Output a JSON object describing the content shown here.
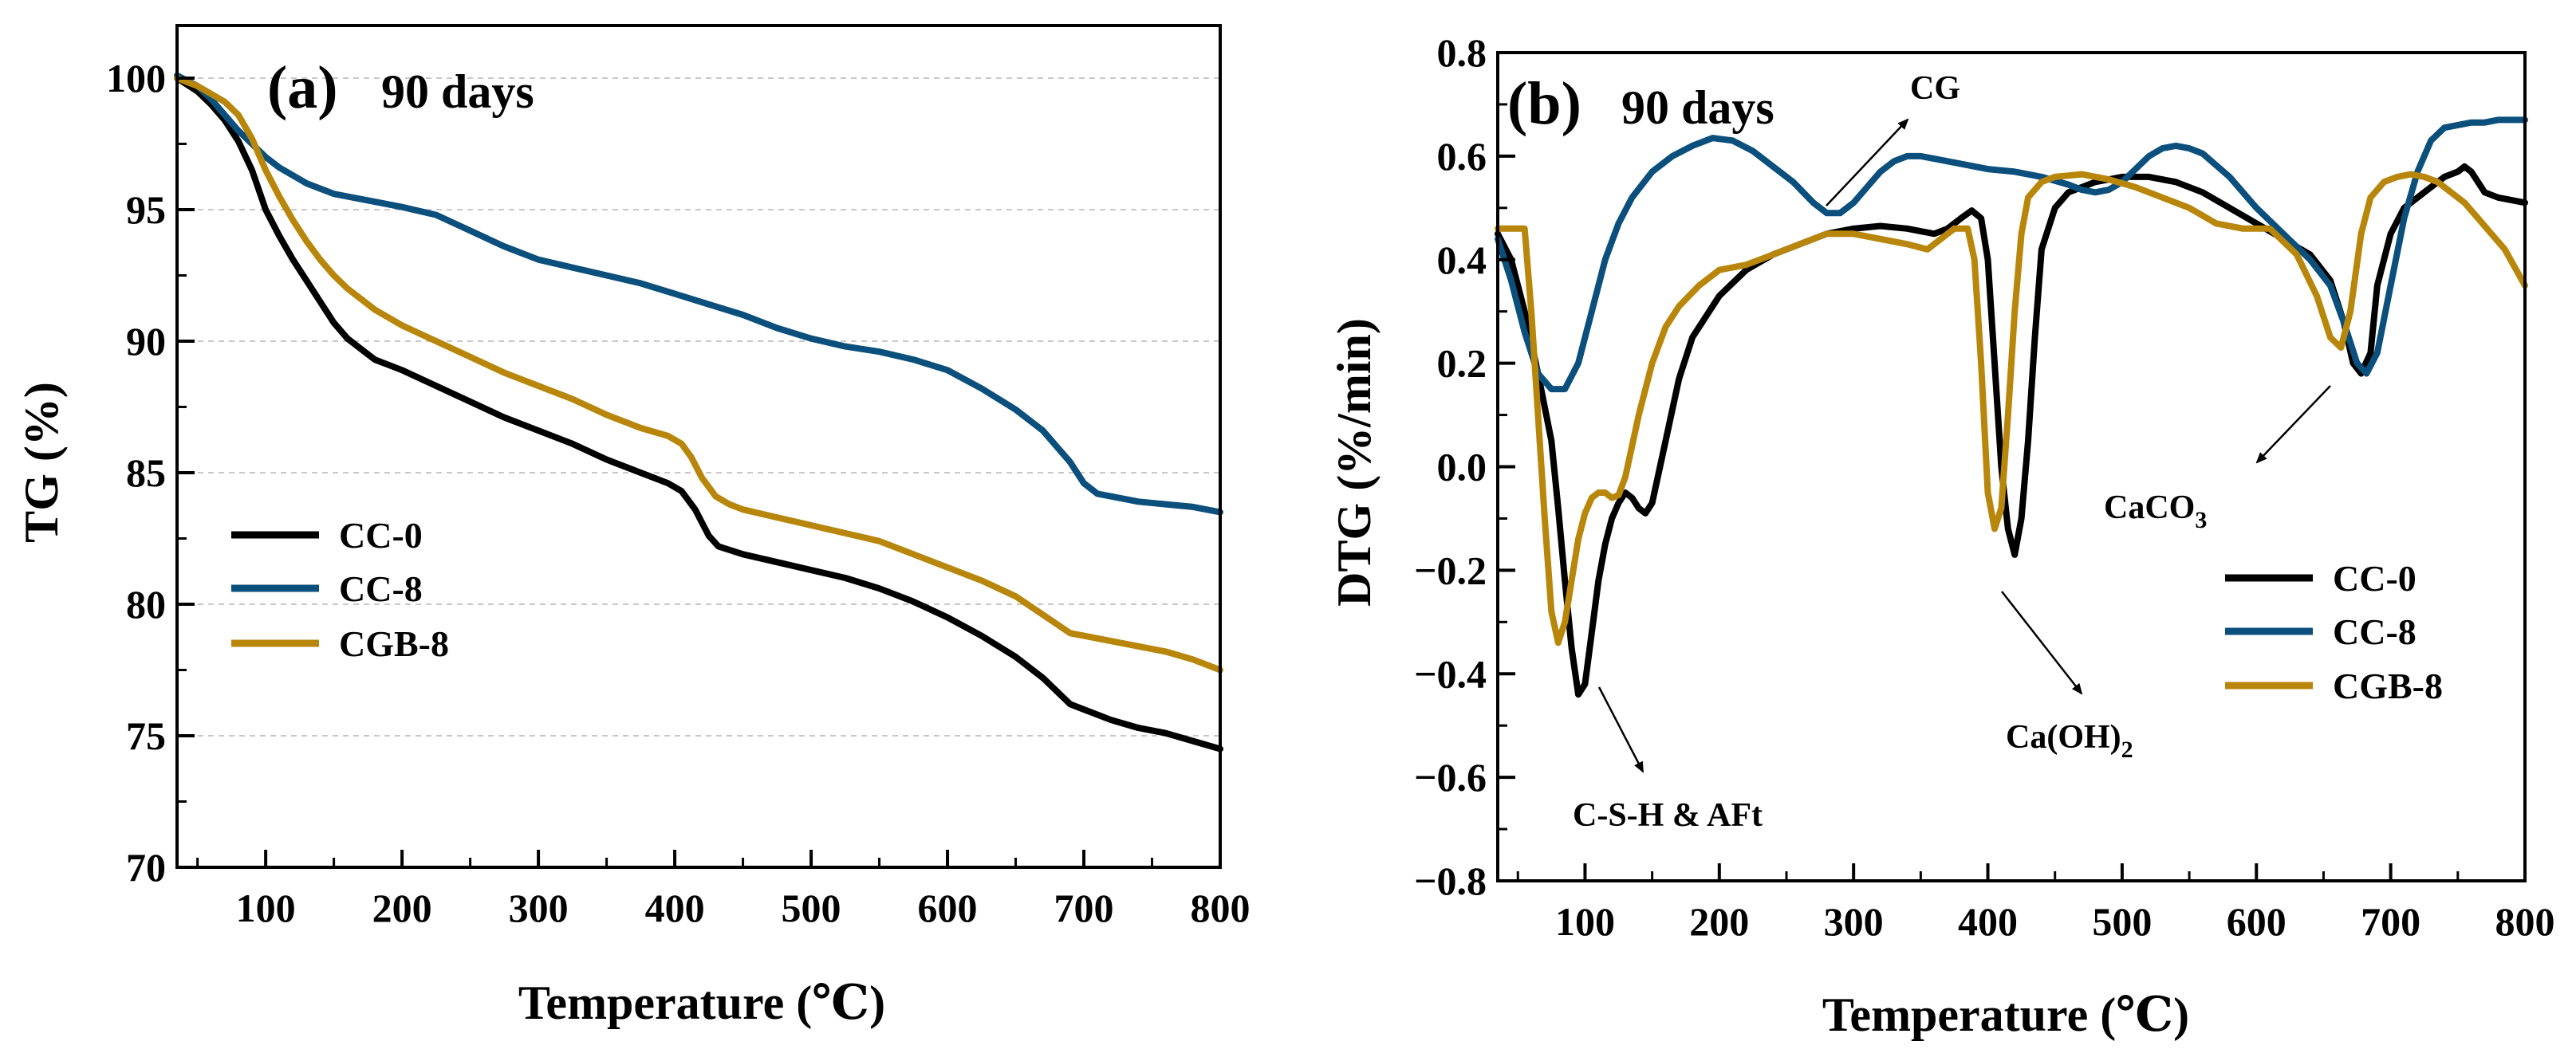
{
  "chart_data": [
    {
      "type": "line",
      "panel": "(a)",
      "title": "90 days",
      "xlabel": "Temperature (℃)",
      "ylabel": "TG (%)",
      "xlim": [
        35,
        800
      ],
      "ylim": [
        70,
        102
      ],
      "xticks": [
        100,
        200,
        300,
        400,
        500,
        600,
        700,
        800
      ],
      "xtick_labels": [
        "100",
        "200",
        "300",
        "400",
        "500",
        "600",
        "700",
        "800"
      ],
      "yticks": [
        70,
        75,
        80,
        85,
        90,
        95,
        100
      ],
      "ytick_labels": [
        "70",
        "75",
        "80",
        "85",
        "90",
        "95",
        "100"
      ],
      "grid_y": [
        75,
        80,
        85,
        90,
        95,
        100
      ],
      "legend_position": "middle-left",
      "series": [
        {
          "name": "CC-0",
          "color": "#000000",
          "x": [
            35,
            50,
            60,
            70,
            80,
            90,
            100,
            110,
            120,
            130,
            140,
            150,
            160,
            170,
            180,
            190,
            200,
            225,
            250,
            275,
            300,
            325,
            350,
            375,
            395,
            405,
            415,
            425,
            432,
            450,
            475,
            500,
            525,
            550,
            575,
            600,
            625,
            650,
            670,
            690,
            700,
            720,
            740,
            760,
            780,
            800
          ],
          "y": [
            100,
            99.5,
            99,
            98.4,
            97.6,
            96.5,
            95,
            94,
            93.1,
            92.3,
            91.5,
            90.7,
            90.1,
            89.7,
            89.3,
            89.1,
            88.9,
            88.3,
            87.7,
            87.1,
            86.6,
            86.1,
            85.5,
            85,
            84.6,
            84.3,
            83.6,
            82.6,
            82.2,
            81.9,
            81.6,
            81.3,
            81,
            80.6,
            80.1,
            79.5,
            78.8,
            78,
            77.2,
            76.2,
            76,
            75.6,
            75.3,
            75.1,
            74.8,
            74.5
          ]
        },
        {
          "name": "CC-8",
          "color": "#0b4f7d",
          "x": [
            35,
            50,
            60,
            70,
            80,
            90,
            100,
            110,
            120,
            130,
            140,
            150,
            160,
            180,
            200,
            225,
            250,
            275,
            300,
            325,
            350,
            375,
            400,
            425,
            450,
            475,
            500,
            525,
            550,
            575,
            600,
            625,
            650,
            670,
            690,
            700,
            710,
            720,
            740,
            760,
            780,
            800
          ],
          "y": [
            100.1,
            99.7,
            99.2,
            98.6,
            98,
            97.5,
            97,
            96.6,
            96.3,
            96,
            95.8,
            95.6,
            95.5,
            95.3,
            95.1,
            94.8,
            94.2,
            93.6,
            93.1,
            92.8,
            92.5,
            92.2,
            91.8,
            91.4,
            91,
            90.5,
            90.1,
            89.8,
            89.6,
            89.3,
            88.9,
            88.2,
            87.4,
            86.6,
            85.4,
            84.6,
            84.2,
            84.1,
            83.9,
            83.8,
            83.7,
            83.5
          ]
        },
        {
          "name": "CGB-8",
          "color": "#b8860b",
          "x": [
            35,
            50,
            60,
            70,
            80,
            90,
            100,
            110,
            120,
            130,
            140,
            150,
            160,
            170,
            180,
            190,
            200,
            225,
            250,
            275,
            300,
            325,
            350,
            375,
            395,
            405,
            412,
            420,
            430,
            440,
            450,
            475,
            500,
            525,
            550,
            575,
            600,
            625,
            650,
            670,
            690,
            700,
            720,
            740,
            760,
            780,
            800
          ],
          "y": [
            100,
            99.7,
            99.4,
            99.1,
            98.6,
            97.7,
            96.5,
            95.5,
            94.6,
            93.8,
            93.1,
            92.5,
            92,
            91.6,
            91.2,
            90.9,
            90.6,
            90,
            89.4,
            88.8,
            88.3,
            87.8,
            87.2,
            86.7,
            86.4,
            86.1,
            85.6,
            84.8,
            84.1,
            83.8,
            83.6,
            83.3,
            83,
            82.7,
            82.4,
            81.9,
            81.4,
            80.9,
            80.3,
            79.6,
            78.9,
            78.8,
            78.6,
            78.4,
            78.2,
            77.9,
            77.5
          ]
        }
      ]
    },
    {
      "type": "line",
      "panel": "(b)",
      "title": "90 days",
      "xlabel": "Temperature (℃)",
      "ylabel": "DTG (%/min)",
      "xlim": [
        35,
        800
      ],
      "ylim": [
        -0.8,
        0.8
      ],
      "xticks": [
        100,
        200,
        300,
        400,
        500,
        600,
        700,
        800
      ],
      "xtick_labels": [
        "100",
        "200",
        "300",
        "400",
        "500",
        "600",
        "700",
        "800"
      ],
      "yticks": [
        -0.8,
        -0.6,
        -0.4,
        -0.2,
        0,
        0.2,
        0.4,
        0.6,
        0.8
      ],
      "ytick_labels": [
        "−0.8",
        "−0.6",
        "−0.4",
        "−0.2",
        "0.0",
        "0.2",
        "0.4",
        "0.6",
        "0.8"
      ],
      "legend_position": "lower-right",
      "annotations": [
        {
          "text": "CG"
        },
        {
          "text": "C-S-H & AFt"
        },
        {
          "text": "Ca(OH)",
          "subscript": "2"
        },
        {
          "text": "CaCO",
          "subscript": "3"
        }
      ],
      "series": [
        {
          "name": "CC-0",
          "color": "#000000",
          "x": [
            35,
            45,
            55,
            65,
            75,
            80,
            85,
            90,
            95,
            100,
            105,
            110,
            115,
            120,
            125,
            130,
            135,
            140,
            145,
            150,
            160,
            170,
            180,
            200,
            220,
            240,
            260,
            280,
            300,
            320,
            340,
            360,
            370,
            380,
            388,
            395,
            400,
            405,
            410,
            415,
            420,
            425,
            430,
            435,
            440,
            450,
            460,
            480,
            500,
            520,
            540,
            560,
            580,
            600,
            620,
            640,
            655,
            665,
            672,
            678,
            685,
            690,
            700,
            710,
            720,
            730,
            740,
            750,
            755,
            760,
            765,
            770,
            780,
            790,
            800
          ],
          "y": [
            0.45,
            0.4,
            0.3,
            0.18,
            0.05,
            -0.08,
            -0.22,
            -0.35,
            -0.44,
            -0.42,
            -0.32,
            -0.22,
            -0.15,
            -0.1,
            -0.07,
            -0.05,
            -0.06,
            -0.08,
            -0.09,
            -0.07,
            0.05,
            0.17,
            0.25,
            0.33,
            0.38,
            0.41,
            0.43,
            0.45,
            0.46,
            0.465,
            0.46,
            0.45,
            0.46,
            0.48,
            0.495,
            0.48,
            0.4,
            0.2,
            0.0,
            -0.12,
            -0.17,
            -0.1,
            0.05,
            0.25,
            0.42,
            0.5,
            0.53,
            0.55,
            0.56,
            0.56,
            0.55,
            0.53,
            0.5,
            0.47,
            0.44,
            0.41,
            0.36,
            0.28,
            0.2,
            0.18,
            0.22,
            0.35,
            0.45,
            0.5,
            0.52,
            0.54,
            0.56,
            0.57,
            0.58,
            0.57,
            0.55,
            0.53,
            0.52,
            0.515,
            0.51
          ]
        },
        {
          "name": "CC-8",
          "color": "#0b4f7d",
          "x": [
            35,
            45,
            55,
            65,
            75,
            85,
            95,
            105,
            115,
            125,
            135,
            150,
            165,
            180,
            195,
            210,
            225,
            240,
            255,
            270,
            280,
            290,
            300,
            310,
            320,
            330,
            340,
            350,
            360,
            380,
            400,
            420,
            440,
            460,
            470,
            480,
            490,
            500,
            510,
            520,
            530,
            540,
            550,
            560,
            580,
            600,
            620,
            640,
            655,
            665,
            675,
            682,
            690,
            700,
            710,
            720,
            730,
            740,
            750,
            760,
            770,
            780,
            790,
            800
          ],
          "y": [
            0.44,
            0.36,
            0.26,
            0.18,
            0.15,
            0.15,
            0.2,
            0.3,
            0.4,
            0.47,
            0.52,
            0.57,
            0.6,
            0.62,
            0.635,
            0.63,
            0.61,
            0.58,
            0.55,
            0.51,
            0.49,
            0.49,
            0.51,
            0.54,
            0.57,
            0.59,
            0.6,
            0.6,
            0.595,
            0.585,
            0.575,
            0.57,
            0.56,
            0.545,
            0.535,
            0.53,
            0.535,
            0.55,
            0.575,
            0.6,
            0.615,
            0.62,
            0.615,
            0.605,
            0.56,
            0.5,
            0.45,
            0.4,
            0.35,
            0.28,
            0.2,
            0.18,
            0.22,
            0.35,
            0.48,
            0.57,
            0.63,
            0.655,
            0.66,
            0.665,
            0.665,
            0.67,
            0.67,
            0.67
          ]
        },
        {
          "name": "CGB-8",
          "color": "#b8860b",
          "x": [
            35,
            40,
            50,
            55,
            60,
            65,
            70,
            75,
            80,
            85,
            90,
            95,
            100,
            105,
            110,
            115,
            120,
            125,
            130,
            135,
            140,
            150,
            160,
            170,
            185,
            200,
            220,
            240,
            260,
            280,
            300,
            320,
            340,
            355,
            365,
            375,
            385,
            390,
            395,
            400,
            405,
            410,
            415,
            420,
            425,
            430,
            440,
            450,
            470,
            490,
            510,
            530,
            550,
            570,
            590,
            610,
            630,
            645,
            655,
            663,
            670,
            678,
            685,
            695,
            705,
            715,
            725,
            735,
            745,
            755,
            765,
            775,
            785,
            800
          ],
          "y": [
            0.46,
            0.46,
            0.46,
            0.46,
            0.3,
            0.1,
            -0.1,
            -0.28,
            -0.34,
            -0.3,
            -0.22,
            -0.14,
            -0.09,
            -0.06,
            -0.05,
            -0.05,
            -0.06,
            -0.055,
            -0.02,
            0.04,
            0.1,
            0.2,
            0.27,
            0.31,
            0.35,
            0.38,
            0.39,
            0.41,
            0.43,
            0.45,
            0.45,
            0.44,
            0.43,
            0.42,
            0.44,
            0.46,
            0.46,
            0.4,
            0.2,
            -0.05,
            -0.12,
            -0.08,
            0.1,
            0.3,
            0.45,
            0.52,
            0.55,
            0.56,
            0.565,
            0.555,
            0.54,
            0.52,
            0.5,
            0.47,
            0.46,
            0.46,
            0.41,
            0.33,
            0.25,
            0.23,
            0.3,
            0.45,
            0.52,
            0.55,
            0.56,
            0.565,
            0.56,
            0.55,
            0.53,
            0.51,
            0.48,
            0.45,
            0.42,
            0.35
          ]
        }
      ]
    }
  ]
}
